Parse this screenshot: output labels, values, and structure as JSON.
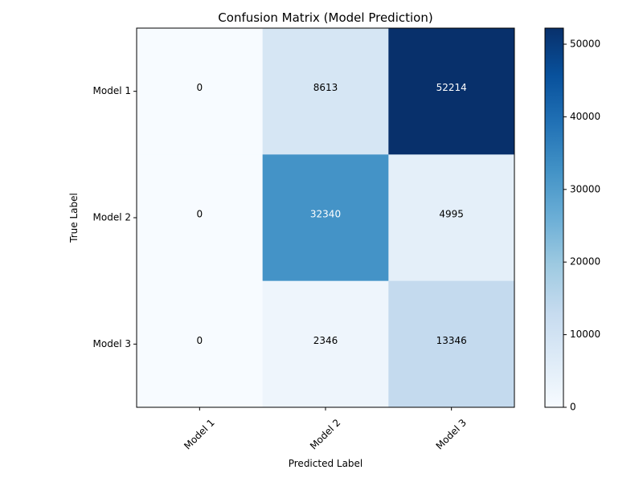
{
  "chart_data": {
    "type": "heatmap",
    "title": "Confusion Matrix (Model Prediction)",
    "xlabel": "Predicted Label",
    "ylabel": "True Label",
    "x_categories": [
      "Model 1",
      "Model 2",
      "Model 3"
    ],
    "y_categories": [
      "Model 1",
      "Model 2",
      "Model 3"
    ],
    "values": [
      [
        0,
        8613,
        52214
      ],
      [
        0,
        32340,
        4995
      ],
      [
        0,
        2346,
        13346
      ]
    ],
    "colorbar": {
      "min": 0,
      "max": 52214,
      "ticks": [
        0,
        10000,
        20000,
        30000,
        40000,
        50000
      ],
      "colormap": "Blues"
    },
    "x_tick_rotation": 45,
    "grid": false
  },
  "colors": {
    "colormap_stops": [
      "#f7fbff",
      "#deebf7",
      "#c6dbef",
      "#9ecae1",
      "#6baed6",
      "#4292c6",
      "#2171b5",
      "#08519c",
      "#08306b"
    ]
  }
}
